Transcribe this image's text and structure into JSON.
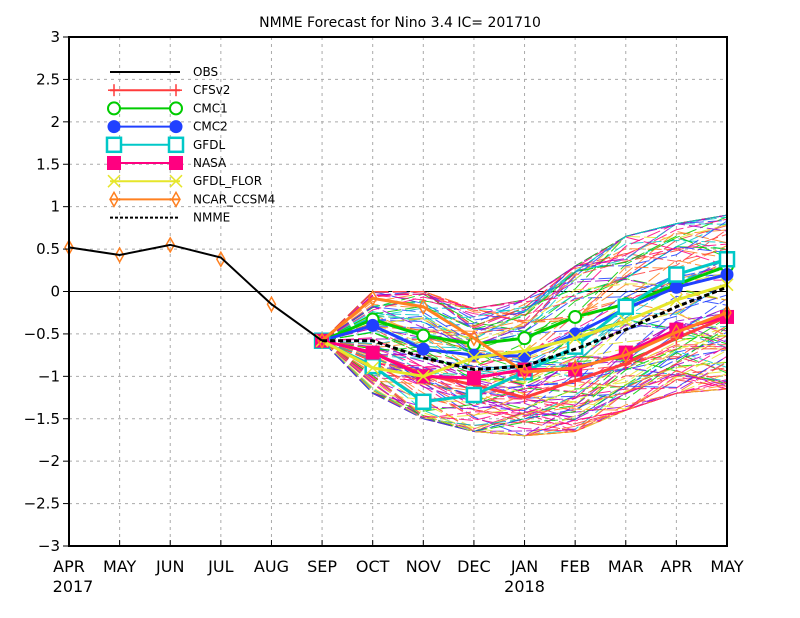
{
  "chart_data": {
    "type": "line",
    "title": "NMME Forecast for Nino 3.4   IC= 201710",
    "xlabel": "",
    "ylabel": "",
    "ylim": [
      -3,
      3
    ],
    "yticks": [
      3,
      2.5,
      2,
      1.5,
      1,
      0.5,
      0,
      -0.5,
      -1,
      -1.5,
      -2,
      -2.5,
      -3
    ],
    "ytick_labels": [
      "3",
      "2.5",
      "2",
      "1.5",
      "1",
      "0.5",
      "0",
      "−0.5",
      "−1",
      "−1.5",
      "−2",
      "−2.5",
      "−3"
    ],
    "x_tick_labels": [
      "APR",
      "MAY",
      "JUN",
      "JUL",
      "AUG",
      "SEP",
      "OCT",
      "NOV",
      "DEC",
      "JAN",
      "FEB",
      "MAR",
      "APR",
      "MAY"
    ],
    "year_labels": [
      {
        "index": 0,
        "label": "2017"
      },
      {
        "index": 9,
        "label": "2018"
      }
    ],
    "grid": true,
    "zero_line": true,
    "legend_position": "top-left",
    "legend": [
      "OBS",
      "CFSv2",
      "CMC1",
      "CMC2",
      "GFDL",
      "NASA",
      "GFDL_FLOR",
      "NCAR_CCSM4",
      "NMME"
    ],
    "series": [
      {
        "name": "OBS",
        "color": "#000000",
        "marker": "none",
        "start": 0,
        "values": [
          0.52,
          0.43,
          0.55,
          0.4,
          -0.15,
          -0.58
        ]
      },
      {
        "name": "CFSv2",
        "color": "#ff3b3b",
        "marker": "plus",
        "start": 5,
        "values": [
          -0.58,
          -0.72,
          -0.98,
          -1.1,
          -1.25,
          -1.05,
          -0.85,
          -0.55,
          -0.3
        ]
      },
      {
        "name": "CMC1",
        "color": "#00cc00",
        "marker": "circle-open",
        "start": 5,
        "values": [
          -0.58,
          -0.33,
          -0.52,
          -0.62,
          -0.55,
          -0.3,
          -0.15,
          0.08,
          0.3
        ]
      },
      {
        "name": "CMC2",
        "color": "#2040ff",
        "marker": "circle-filled",
        "start": 5,
        "values": [
          -0.58,
          -0.4,
          -0.68,
          -0.75,
          -0.76,
          -0.5,
          -0.2,
          0.05,
          0.2
        ]
      },
      {
        "name": "GFDL",
        "color": "#00c8c8",
        "marker": "square-open",
        "start": 5,
        "values": [
          -0.58,
          -0.88,
          -1.3,
          -1.22,
          -0.95,
          -0.65,
          -0.18,
          0.2,
          0.38
        ]
      },
      {
        "name": "NASA",
        "color": "#ff0080",
        "marker": "square-filled",
        "start": 5,
        "values": [
          -0.58,
          -0.72,
          -1.0,
          -1.02,
          -0.92,
          -0.92,
          -0.72,
          -0.45,
          -0.3
        ]
      },
      {
        "name": "GFDL_FLOR",
        "color": "#e6e62a",
        "marker": "x",
        "start": 5,
        "values": [
          -0.58,
          -0.9,
          -1.0,
          -0.78,
          -0.7,
          -0.55,
          -0.35,
          -0.1,
          0.08
        ]
      },
      {
        "name": "NCAR_CCSM4",
        "color": "#ff8020",
        "marker": "diamond-open",
        "start": 0,
        "values": [
          0.52,
          0.43,
          0.55,
          0.38,
          -0.15,
          -0.58,
          -0.08,
          -0.18,
          -0.55,
          -0.95,
          -0.9,
          -0.75,
          -0.48,
          -0.25
        ]
      },
      {
        "name": "NMME",
        "color": "#000000",
        "marker": "none",
        "dashed": true,
        "start": 5,
        "values": [
          -0.58,
          -0.58,
          -0.78,
          -0.92,
          -0.88,
          -0.68,
          -0.45,
          -0.18,
          0.05
        ]
      }
    ],
    "ensemble_members": {
      "description": "Thin individual ensemble-member traces from SEP 2017 to MAY 2018",
      "range_by_month": {
        "months": [
          "SEP",
          "OCT",
          "NOV",
          "DEC",
          "JAN",
          "FEB",
          "MAR",
          "APR",
          "MAY"
        ],
        "min": [
          -0.6,
          -1.2,
          -1.5,
          -1.65,
          -1.7,
          -1.65,
          -1.4,
          -1.2,
          -1.15
        ],
        "max": [
          -0.55,
          0.0,
          0.0,
          -0.2,
          -0.1,
          0.3,
          0.65,
          0.8,
          0.9
        ]
      },
      "colors": [
        "#ff3b3b",
        "#00cc00",
        "#2040ff",
        "#00c8c8",
        "#ff0080",
        "#e6e62a",
        "#ff8020",
        "#a000d0"
      ]
    }
  }
}
